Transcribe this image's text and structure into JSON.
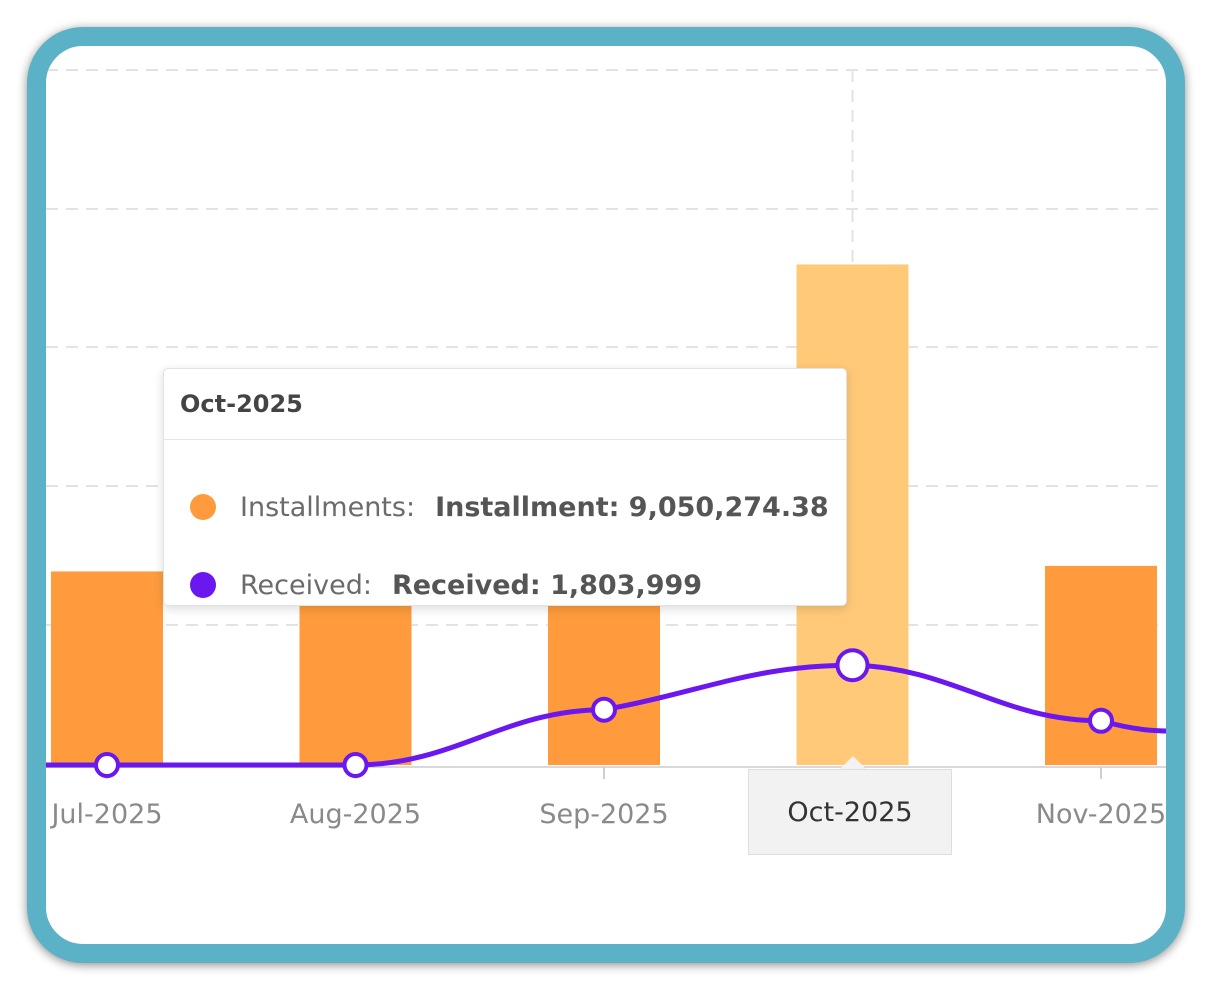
{
  "chart_data": {
    "type": "bar",
    "categories": [
      "Jul-2025",
      "Aug-2025",
      "Sep-2025",
      "Oct-2025",
      "Nov-2025"
    ],
    "series": [
      {
        "name": "Installments",
        "type": "bar",
        "values": [
          3500000,
          3500000,
          4300000,
          9050274.38,
          3600000
        ]
      },
      {
        "name": "Received",
        "type": "line",
        "values": [
          0,
          0,
          1000000,
          1803999,
          800000
        ]
      }
    ],
    "ylim": [
      0,
      13000000
    ],
    "grid": true,
    "highlighted_category": "Oct-2025",
    "colors": {
      "installments": "#ff9b3d",
      "installments_highlight": "#ffc978",
      "received": "#6a17f0",
      "grid": "#e3e3e3",
      "frame": "#5bb1c6"
    }
  },
  "tooltip": {
    "title": "Oct-2025",
    "rows": [
      {
        "label": "Installments:",
        "value": "Installment: 9,050,274.38",
        "color": "#ff9b3d"
      },
      {
        "label": "Received:",
        "value": "Received: 1,803,999",
        "color": "#6a17f0"
      }
    ]
  },
  "x_axis_tooltip": "Oct-2025"
}
